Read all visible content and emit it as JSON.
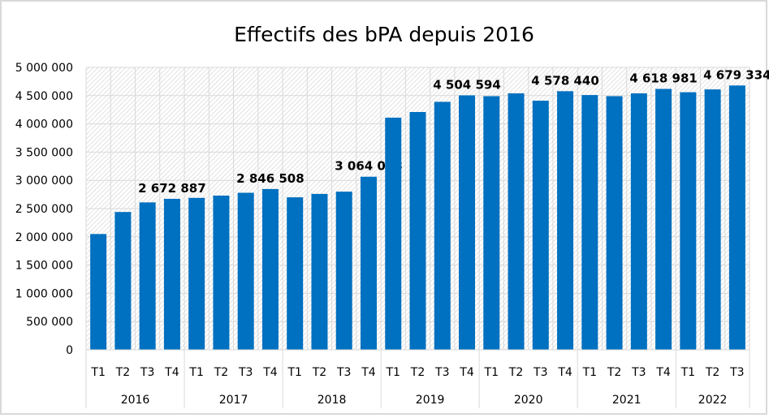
{
  "chart_data": {
    "type": "bar",
    "title": "Effectifs des bPA depuis 2016",
    "xlabel": "",
    "ylabel": "",
    "ylim": [
      0,
      5000000
    ],
    "yticks": [
      0,
      500000,
      1000000,
      1500000,
      2000000,
      2500000,
      3000000,
      3500000,
      4000000,
      4500000,
      5000000
    ],
    "ytick_labels": [
      "0",
      "500 000",
      "1 000 000",
      "1 500 000",
      "2 000 000",
      "2 500 000",
      "3 000 000",
      "3 500 000",
      "4 000 000",
      "4 500 000",
      "5 000 000"
    ],
    "grid": true,
    "legend": "none",
    "bar_color": "#0070C0",
    "groups": [
      {
        "year": "2016",
        "quarters": [
          "T1",
          "T2",
          "T3",
          "T4"
        ],
        "values": [
          2050000,
          2440000,
          2610000,
          2672887
        ],
        "labels": [
          null,
          null,
          null,
          "2 672 887"
        ]
      },
      {
        "year": "2017",
        "quarters": [
          "T1",
          "T2",
          "T3",
          "T4"
        ],
        "values": [
          2690000,
          2730000,
          2780000,
          2846508
        ],
        "labels": [
          null,
          null,
          null,
          "2 846 508"
        ]
      },
      {
        "year": "2018",
        "quarters": [
          "T1",
          "T2",
          "T3",
          "T4"
        ],
        "values": [
          2700000,
          2760000,
          2800000,
          3064058
        ],
        "labels": [
          null,
          null,
          null,
          "3 064 058"
        ]
      },
      {
        "year": "2019",
        "quarters": [
          "T1",
          "T2",
          "T3",
          "T4"
        ],
        "values": [
          4110000,
          4210000,
          4390000,
          4504594
        ],
        "labels": [
          null,
          null,
          null,
          "4 504 594"
        ]
      },
      {
        "year": "2020",
        "quarters": [
          "T1",
          "T2",
          "T3",
          "T4"
        ],
        "values": [
          4490000,
          4540000,
          4410000,
          4578440
        ],
        "labels": [
          null,
          null,
          null,
          "4 578 440"
        ]
      },
      {
        "year": "2021",
        "quarters": [
          "T1",
          "T2",
          "T3",
          "T4"
        ],
        "values": [
          4510000,
          4490000,
          4540000,
          4618981
        ],
        "labels": [
          null,
          null,
          null,
          "4 618 981"
        ]
      },
      {
        "year": "2022",
        "quarters": [
          "T1",
          "T2",
          "T3"
        ],
        "values": [
          4560000,
          4610000,
          4679334
        ],
        "labels": [
          null,
          null,
          "4 679 334"
        ]
      }
    ]
  }
}
